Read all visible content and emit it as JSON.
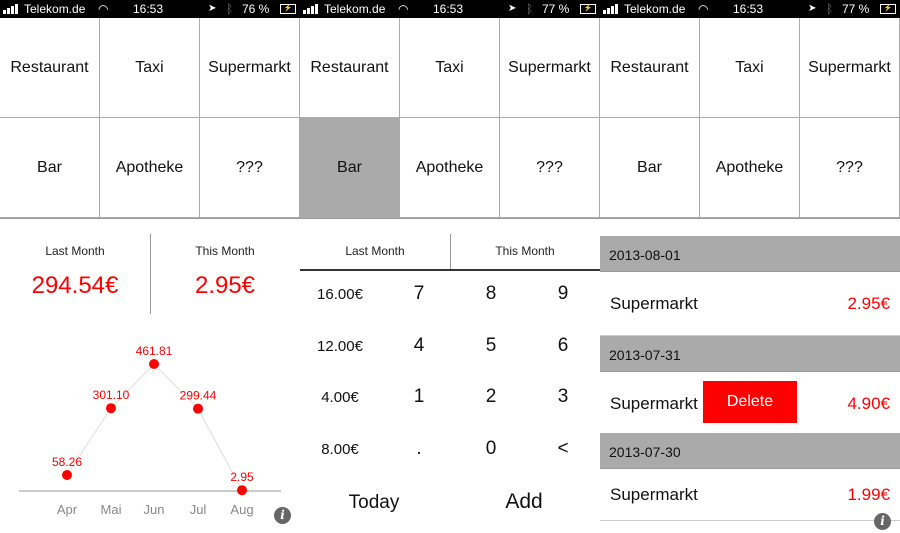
{
  "panels": [
    {
      "status": {
        "carrier": "Telekom.de",
        "time": "16:53",
        "battery": "76 %"
      }
    },
    {
      "status": {
        "carrier": "Telekom.de",
        "time": "16:53",
        "battery": "77 %"
      }
    },
    {
      "status": {
        "carrier": "Telekom.de",
        "time": "16:53",
        "battery": "77 %"
      }
    }
  ],
  "categories": [
    "Restaurant",
    "Taxi",
    "Supermarkt",
    "Bar",
    "Apotheke",
    "???"
  ],
  "selected_category_panel2": "Bar",
  "summary": {
    "last_month_label": "Last Month",
    "this_month_label": "This Month",
    "last_month_value": "294.54€",
    "this_month_value": "2.95€"
  },
  "chart_data": {
    "type": "line",
    "categories": [
      "Apr",
      "Mai",
      "Jun",
      "Jul",
      "Aug"
    ],
    "values": [
      58.26,
      301.1,
      461.81,
      299.44,
      2.95
    ],
    "data_labels": [
      "58.26",
      "301.10",
      "461.81",
      "299.44",
      "2.95"
    ],
    "point_color": "#ff0000",
    "line_color": "#dddddd"
  },
  "keypad": {
    "tabs": [
      "Last Month",
      "This Month"
    ],
    "amounts": [
      "16.00€",
      "12.00€",
      "4.00€",
      "8.00€"
    ],
    "keys": [
      "7",
      "8",
      "9",
      "4",
      "5",
      "6",
      "1",
      "2",
      "3",
      ".",
      "0",
      "<"
    ],
    "today": "Today",
    "add": "Add"
  },
  "entries": [
    {
      "date": "2013-08-01",
      "name": "Supermarkt",
      "price": "2.95€"
    },
    {
      "date": "2013-07-31",
      "name": "Supermarkt",
      "price": "4.90€"
    },
    {
      "date": "2013-07-30",
      "name": "Supermarkt",
      "price": "1.99€"
    }
  ],
  "delete_label": "Delete",
  "info_icon": "i",
  "accent": "#ff0000"
}
